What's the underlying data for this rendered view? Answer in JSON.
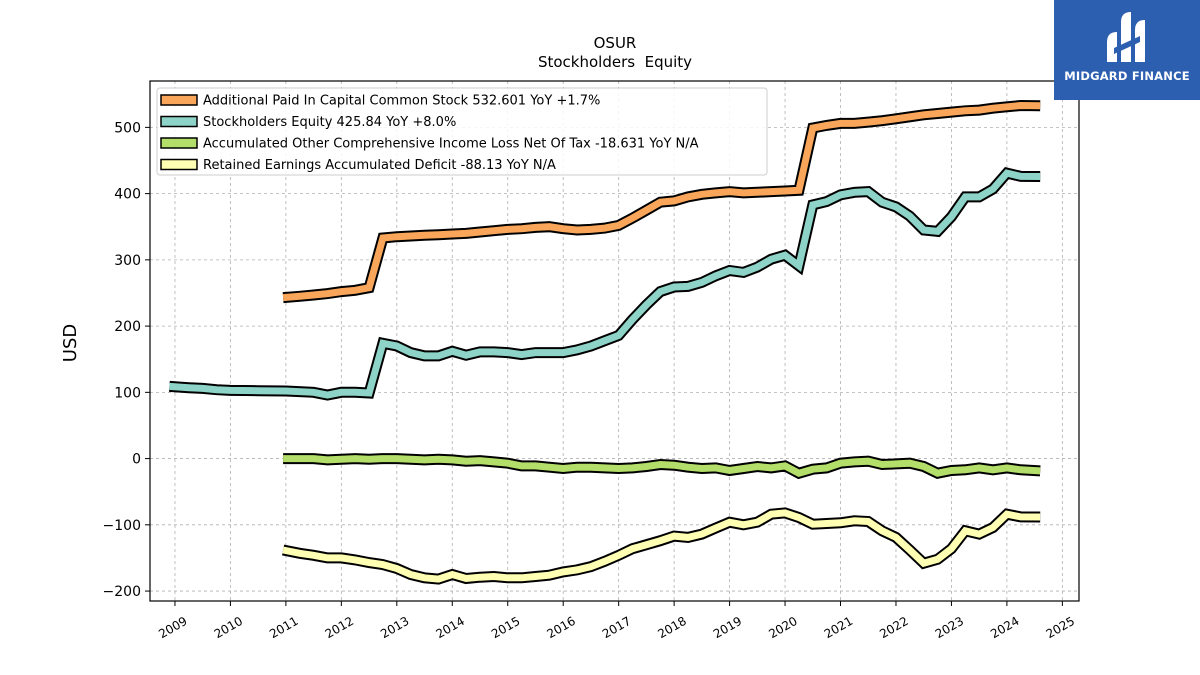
{
  "logo": {
    "text": "MIDGARD FINANCE",
    "background": "#2c5fb0"
  },
  "chart_data": {
    "type": "line",
    "title": "OSUR",
    "subtitle": "Stockholders  Equity",
    "ylabel": "USD",
    "xlabel": "",
    "ylim": [
      -215,
      570
    ],
    "yticks": [
      -200,
      -100,
      0,
      100,
      200,
      300,
      400,
      500
    ],
    "xlim": [
      2008.55,
      2025.3
    ],
    "xticks": [
      "2009",
      "2010",
      "2011",
      "2012",
      "2013",
      "2014",
      "2015",
      "2016",
      "2017",
      "2018",
      "2019",
      "2020",
      "2021",
      "2022",
      "2023",
      "2024",
      "2025"
    ],
    "grid": true,
    "legend_position": "top-left",
    "series": [
      {
        "name": "Additional Paid In Capital Common Stock",
        "legend": "Additional Paid In Capital Common Stock  532.601 YoY +1.7%",
        "color": "#f9a65a",
        "points": [
          [
            2010.95,
            243
          ],
          [
            2011.25,
            245
          ],
          [
            2011.5,
            247
          ],
          [
            2011.75,
            249
          ],
          [
            2012.0,
            252
          ],
          [
            2012.25,
            254
          ],
          [
            2012.5,
            258
          ],
          [
            2012.75,
            333
          ],
          [
            2013.0,
            335
          ],
          [
            2013.25,
            336
          ],
          [
            2013.5,
            337
          ],
          [
            2013.75,
            338
          ],
          [
            2014.0,
            339
          ],
          [
            2014.25,
            340
          ],
          [
            2014.5,
            342
          ],
          [
            2014.75,
            344
          ],
          [
            2015.0,
            346
          ],
          [
            2015.25,
            347
          ],
          [
            2015.5,
            349
          ],
          [
            2015.75,
            350
          ],
          [
            2016.0,
            347
          ],
          [
            2016.25,
            345
          ],
          [
            2016.5,
            346
          ],
          [
            2016.75,
            348
          ],
          [
            2017.0,
            352
          ],
          [
            2017.25,
            363
          ],
          [
            2017.5,
            375
          ],
          [
            2017.75,
            387
          ],
          [
            2018.0,
            389
          ],
          [
            2018.25,
            395
          ],
          [
            2018.5,
            399
          ],
          [
            2018.75,
            401
          ],
          [
            2019.0,
            403
          ],
          [
            2019.25,
            401
          ],
          [
            2019.5,
            402
          ],
          [
            2019.75,
            403
          ],
          [
            2020.0,
            404
          ],
          [
            2020.25,
            405
          ],
          [
            2020.5,
            499
          ],
          [
            2020.75,
            503
          ],
          [
            2021.0,
            506
          ],
          [
            2021.25,
            506
          ],
          [
            2021.5,
            508
          ],
          [
            2021.75,
            510
          ],
          [
            2022.0,
            513
          ],
          [
            2022.25,
            516
          ],
          [
            2022.5,
            519
          ],
          [
            2022.75,
            521
          ],
          [
            2023.0,
            523
          ],
          [
            2023.25,
            525
          ],
          [
            2023.5,
            526
          ],
          [
            2023.75,
            529
          ],
          [
            2024.0,
            531
          ],
          [
            2024.25,
            533
          ],
          [
            2024.6,
            532.6
          ]
        ]
      },
      {
        "name": "Stockholders Equity",
        "legend": "Stockholders Equity  425.84 YoY +8.0%",
        "color": "#8dd3c7",
        "points": [
          [
            2008.9,
            109
          ],
          [
            2009.25,
            107
          ],
          [
            2009.5,
            106
          ],
          [
            2009.75,
            104
          ],
          [
            2010.0,
            103
          ],
          [
            2010.5,
            102.5
          ],
          [
            2011.0,
            102
          ],
          [
            2011.5,
            100
          ],
          [
            2011.75,
            96
          ],
          [
            2012.0,
            100
          ],
          [
            2012.25,
            100
          ],
          [
            2012.5,
            99
          ],
          [
            2012.75,
            174
          ],
          [
            2013.0,
            170
          ],
          [
            2013.25,
            160
          ],
          [
            2013.5,
            155
          ],
          [
            2013.75,
            155
          ],
          [
            2014.0,
            162
          ],
          [
            2014.25,
            156
          ],
          [
            2014.5,
            161
          ],
          [
            2014.75,
            161
          ],
          [
            2015.0,
            160
          ],
          [
            2015.25,
            157
          ],
          [
            2015.5,
            160
          ],
          [
            2015.75,
            160
          ],
          [
            2016.0,
            160
          ],
          [
            2016.25,
            164
          ],
          [
            2016.5,
            170
          ],
          [
            2016.75,
            178
          ],
          [
            2017.0,
            186
          ],
          [
            2017.25,
            210
          ],
          [
            2017.5,
            232
          ],
          [
            2017.75,
            252
          ],
          [
            2018.0,
            259
          ],
          [
            2018.25,
            260
          ],
          [
            2018.5,
            266
          ],
          [
            2018.75,
            276
          ],
          [
            2019.0,
            284
          ],
          [
            2019.25,
            281
          ],
          [
            2019.5,
            289
          ],
          [
            2019.75,
            301
          ],
          [
            2020.0,
            307
          ],
          [
            2020.25,
            291
          ],
          [
            2020.5,
            383
          ],
          [
            2020.75,
            388
          ],
          [
            2021.0,
            398
          ],
          [
            2021.25,
            402
          ],
          [
            2021.5,
            403
          ],
          [
            2021.75,
            387
          ],
          [
            2022.0,
            380
          ],
          [
            2022.25,
            366
          ],
          [
            2022.5,
            345
          ],
          [
            2022.75,
            343
          ],
          [
            2023.0,
            365
          ],
          [
            2023.25,
            395
          ],
          [
            2023.5,
            395
          ],
          [
            2023.75,
            407
          ],
          [
            2024.0,
            431
          ],
          [
            2024.25,
            426
          ],
          [
            2024.6,
            425.84
          ]
        ]
      },
      {
        "name": "Accumulated Other Comprehensive Income Loss Net Of Tax",
        "legend": "Accumulated Other Comprehensive Income Loss Net Of Tax  -18.631 YoY N/A",
        "color": "#b3de69",
        "points": [
          [
            2010.95,
            0
          ],
          [
            2011.25,
            0
          ],
          [
            2011.5,
            0
          ],
          [
            2011.75,
            -2
          ],
          [
            2012.0,
            -1
          ],
          [
            2012.25,
            0
          ],
          [
            2012.5,
            -1
          ],
          [
            2012.75,
            0
          ],
          [
            2013.0,
            0
          ],
          [
            2013.25,
            -1
          ],
          [
            2013.5,
            -2
          ],
          [
            2013.75,
            -1
          ],
          [
            2014.0,
            -2
          ],
          [
            2014.25,
            -4
          ],
          [
            2014.5,
            -3
          ],
          [
            2014.75,
            -5
          ],
          [
            2015.0,
            -7
          ],
          [
            2015.25,
            -11
          ],
          [
            2015.5,
            -11
          ],
          [
            2015.75,
            -13
          ],
          [
            2016.0,
            -15
          ],
          [
            2016.25,
            -13
          ],
          [
            2016.5,
            -13
          ],
          [
            2016.75,
            -14
          ],
          [
            2017.0,
            -15
          ],
          [
            2017.25,
            -14
          ],
          [
            2017.5,
            -12
          ],
          [
            2017.75,
            -9
          ],
          [
            2018.0,
            -10
          ],
          [
            2018.25,
            -13
          ],
          [
            2018.5,
            -15
          ],
          [
            2018.75,
            -14
          ],
          [
            2019.0,
            -18
          ],
          [
            2019.25,
            -15
          ],
          [
            2019.5,
            -12
          ],
          [
            2019.75,
            -14
          ],
          [
            2020.0,
            -11
          ],
          [
            2020.25,
            -22
          ],
          [
            2020.5,
            -16
          ],
          [
            2020.75,
            -14
          ],
          [
            2021.0,
            -7
          ],
          [
            2021.25,
            -5
          ],
          [
            2021.5,
            -4
          ],
          [
            2021.75,
            -9
          ],
          [
            2022.0,
            -8
          ],
          [
            2022.25,
            -7
          ],
          [
            2022.5,
            -12
          ],
          [
            2022.75,
            -22
          ],
          [
            2023.0,
            -18
          ],
          [
            2023.25,
            -17
          ],
          [
            2023.5,
            -14
          ],
          [
            2023.75,
            -17
          ],
          [
            2024.0,
            -14
          ],
          [
            2024.25,
            -17
          ],
          [
            2024.6,
            -18.631
          ]
        ]
      },
      {
        "name": "Retained Earnings Accumulated Deficit",
        "legend": "Retained Earnings Accumulated Deficit  -88.13 YoY N/A",
        "color": "#ffffb3",
        "points": [
          [
            2010.95,
            -138
          ],
          [
            2011.25,
            -143
          ],
          [
            2011.5,
            -146
          ],
          [
            2011.75,
            -150
          ],
          [
            2012.0,
            -150
          ],
          [
            2012.25,
            -153
          ],
          [
            2012.5,
            -157
          ],
          [
            2012.75,
            -160
          ],
          [
            2013.0,
            -166
          ],
          [
            2013.25,
            -175
          ],
          [
            2013.5,
            -180
          ],
          [
            2013.75,
            -182
          ],
          [
            2014.0,
            -175
          ],
          [
            2014.25,
            -181
          ],
          [
            2014.5,
            -179
          ],
          [
            2014.75,
            -178
          ],
          [
            2015.0,
            -180
          ],
          [
            2015.25,
            -180
          ],
          [
            2015.5,
            -178
          ],
          [
            2015.75,
            -176
          ],
          [
            2016.0,
            -171
          ],
          [
            2016.25,
            -168
          ],
          [
            2016.5,
            -163
          ],
          [
            2016.75,
            -155
          ],
          [
            2017.0,
            -146
          ],
          [
            2017.25,
            -136
          ],
          [
            2017.5,
            -130
          ],
          [
            2017.75,
            -124
          ],
          [
            2018.0,
            -117
          ],
          [
            2018.25,
            -119
          ],
          [
            2018.5,
            -114
          ],
          [
            2018.75,
            -105
          ],
          [
            2019.0,
            -96
          ],
          [
            2019.25,
            -100
          ],
          [
            2019.5,
            -96
          ],
          [
            2019.75,
            -84
          ],
          [
            2020.0,
            -82
          ],
          [
            2020.25,
            -89
          ],
          [
            2020.5,
            -99
          ],
          [
            2020.75,
            -98
          ],
          [
            2021.0,
            -97
          ],
          [
            2021.25,
            -94
          ],
          [
            2021.5,
            -95
          ],
          [
            2021.75,
            -109
          ],
          [
            2022.0,
            -119
          ],
          [
            2022.25,
            -138
          ],
          [
            2022.5,
            -158
          ],
          [
            2022.75,
            -152
          ],
          [
            2023.0,
            -136
          ],
          [
            2023.25,
            -109
          ],
          [
            2023.5,
            -114
          ],
          [
            2023.75,
            -104
          ],
          [
            2024.0,
            -84
          ],
          [
            2024.25,
            -88
          ],
          [
            2024.6,
            -88.13
          ]
        ]
      }
    ]
  }
}
